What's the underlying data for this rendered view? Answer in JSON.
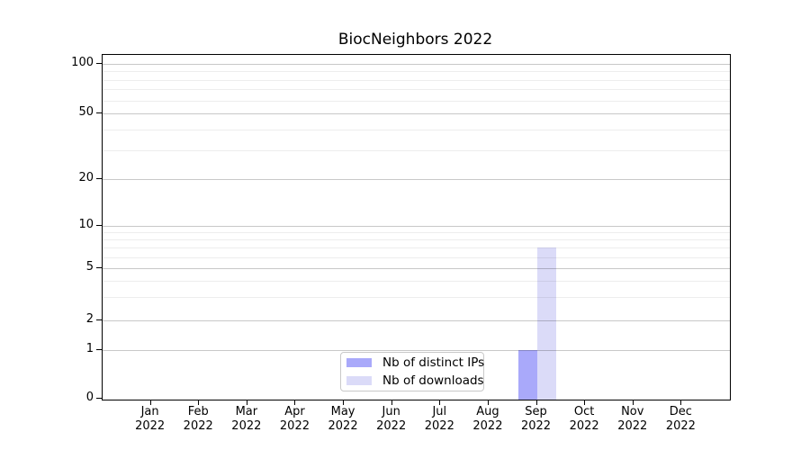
{
  "title": "BiocNeighbors 2022",
  "palette": {
    "distinct_ips_bar": "#a9a9fa",
    "downloads_bar": "#dbdbf8",
    "axis": "#000000",
    "major_grid": "#c8c8c8",
    "minor_grid": "#ededed",
    "legend_border": "#c9c9c9",
    "background": "#ffffff"
  },
  "chart_data": {
    "type": "bar",
    "title": "BiocNeighbors 2022",
    "categories": [
      "Jan 2022",
      "Feb 2022",
      "Mar 2022",
      "Apr 2022",
      "May 2022",
      "Jun 2022",
      "Jul 2022",
      "Aug 2022",
      "Sep 2022",
      "Oct 2022",
      "Nov 2022",
      "Dec 2022"
    ],
    "series": [
      {
        "name": "Nb of distinct IPs",
        "color": "#a9a9fa",
        "values": [
          0,
          0,
          0,
          0,
          0,
          0,
          0,
          0,
          1,
          0,
          0,
          0
        ]
      },
      {
        "name": "Nb of downloads",
        "color": "#dbdbf8",
        "values": [
          0,
          0,
          0,
          0,
          0,
          0,
          0,
          0,
          7,
          0,
          0,
          0
        ]
      }
    ],
    "xlabel": "",
    "ylabel": "",
    "y_axis": {
      "scale": "log-like with 0 baseline",
      "tick_values": [
        0,
        1,
        2,
        5,
        10,
        20,
        50,
        100
      ],
      "tick_labels": [
        "0",
        "1",
        "2",
        "5",
        "10",
        "20",
        "50",
        "100"
      ],
      "minor_tick_values": [
        3,
        4,
        6,
        7,
        8,
        9,
        30,
        40,
        60,
        70,
        80,
        90
      ],
      "range": [
        0,
        100
      ]
    },
    "grid": "horizontal major and minor, drawn above bars",
    "legend": {
      "position": "lower center, inside axes",
      "entries": [
        "Nb of distinct IPs",
        "Nb of downloads"
      ]
    }
  }
}
